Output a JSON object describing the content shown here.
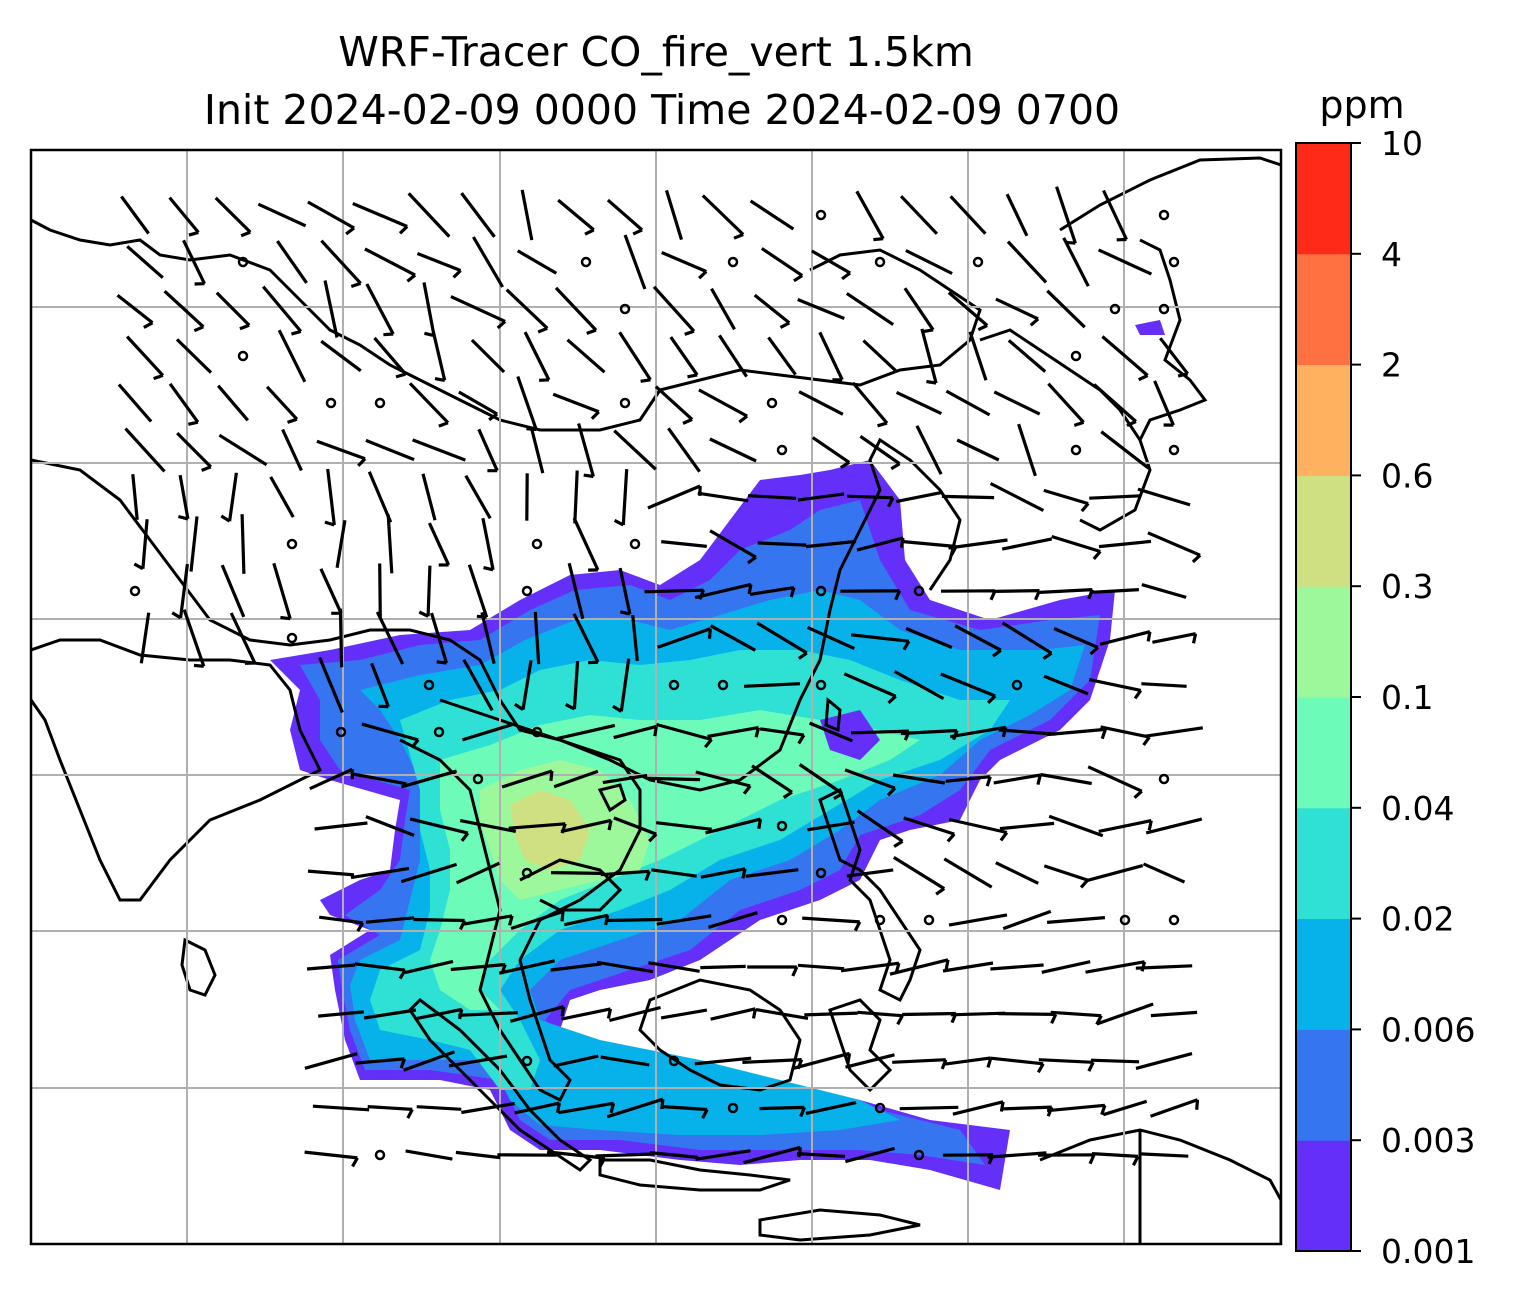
{
  "title": {
    "line1": "WRF-Tracer CO_fire_vert 1.5km",
    "line2": "Init 2024-02-09 0000 Time 2024-02-09 0700"
  },
  "colorbar": {
    "unit": "ppm",
    "levels": [
      "0.001",
      "0.003",
      "0.006",
      "0.02",
      "0.04",
      "0.1",
      "0.3",
      "0.6",
      "2",
      "4",
      "10"
    ],
    "colors": [
      "#6430f9",
      "#3575f0",
      "#07b2ea",
      "#2fe0d5",
      "#6cfbb8",
      "#9df89c",
      "#cfe082",
      "#ffb160",
      "#ff7140",
      "#ff2b18"
    ]
  },
  "map": {
    "gridlines": true,
    "coastline_color": "#000000",
    "wind_barbs": true,
    "grid_color": "#b0b0b0"
  }
}
